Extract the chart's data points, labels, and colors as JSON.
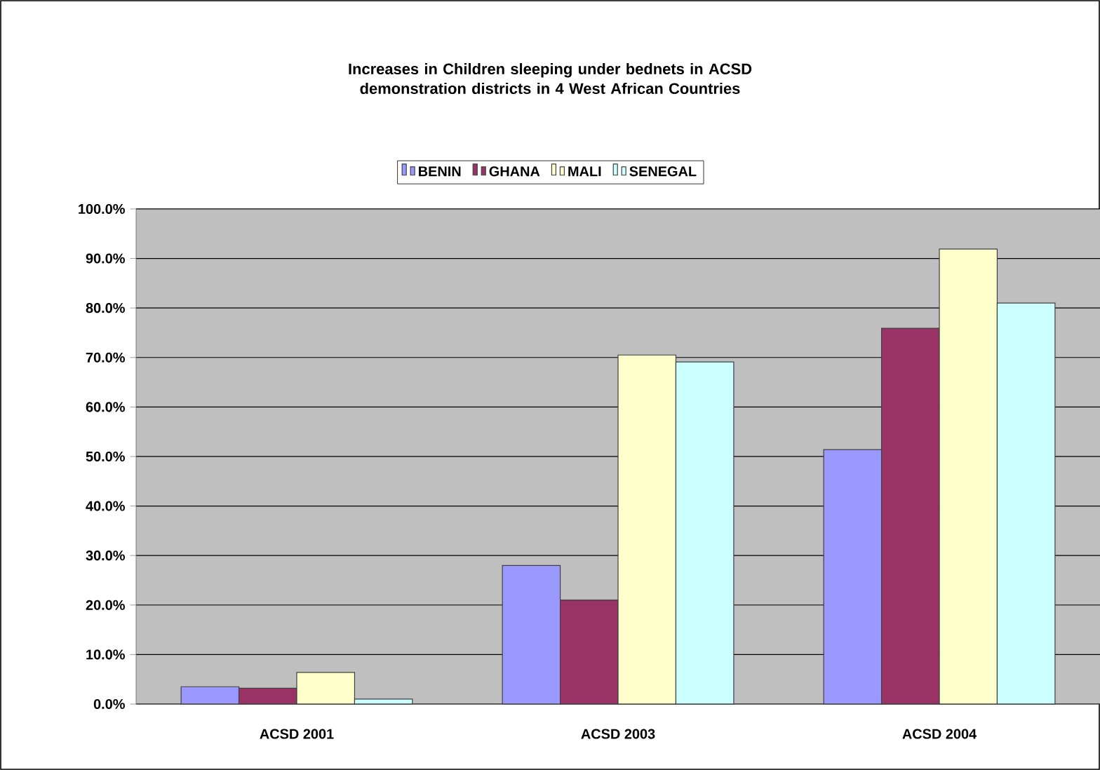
{
  "chart_data": {
    "type": "bar",
    "title": "Increases in Children sleeping under bednets in ACSD demonstration districts in 4 West African Countries",
    "categories": [
      "ACSD  2001",
      "ACSD 2003",
      "ACSD 2004"
    ],
    "series": [
      {
        "name": "BENIN",
        "color": "#9999ff",
        "values": [
          3.5,
          28.0,
          51.4
        ]
      },
      {
        "name": "GHANA",
        "color": "#993366",
        "values": [
          3.2,
          21.0,
          75.9
        ]
      },
      {
        "name": "MALI",
        "color": "#ffffcc",
        "values": [
          6.4,
          70.5,
          91.9
        ]
      },
      {
        "name": "SENEGAL",
        "color": "#ccffff",
        "values": [
          1.0,
          69.1,
          81.0
        ]
      }
    ],
    "ylim": [
      0,
      100
    ],
    "yticks": [
      {
        "value": 0,
        "label": "0.0%"
      },
      {
        "value": 10,
        "label": "10.0%"
      },
      {
        "value": 20,
        "label": "20.0%"
      },
      {
        "value": 30,
        "label": "30.0%"
      },
      {
        "value": 40,
        "label": "40.0%"
      },
      {
        "value": 50,
        "label": "50.0%"
      },
      {
        "value": 60,
        "label": "60.0%"
      },
      {
        "value": 70,
        "label": "70.0%"
      },
      {
        "value": 80,
        "label": "80.0%"
      },
      {
        "value": 90,
        "label": "90.0%"
      },
      {
        "value": 100,
        "label": "100.0%"
      }
    ],
    "grid": "y",
    "legend": "top"
  }
}
